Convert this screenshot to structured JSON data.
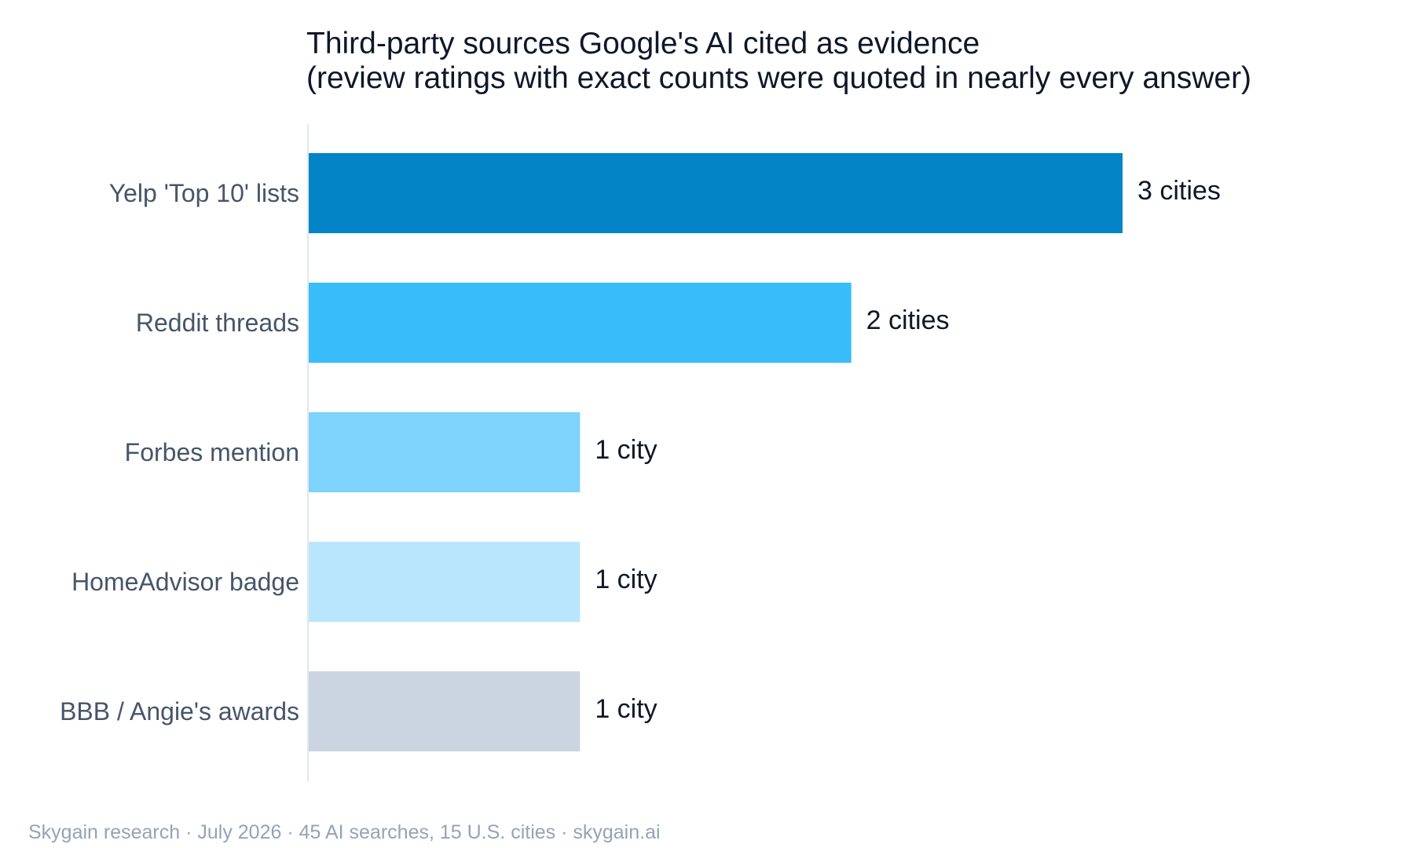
{
  "chart_data": {
    "type": "bar",
    "orientation": "horizontal",
    "title": [
      "Third-party sources Google's AI cited as evidence",
      "(review ratings with exact counts were quoted in nearly every answer)"
    ],
    "categories": [
      "Yelp 'Top 10' lists",
      "Reddit threads",
      "Forbes mention",
      "HomeAdvisor badge",
      "BBB / Angie's awards"
    ],
    "values": [
      3,
      2,
      1,
      1,
      1
    ],
    "value_labels": [
      "3 cities",
      "2 cities",
      "1 city",
      "1 city",
      "1 city"
    ],
    "colors": [
      "#0284c7",
      "#38bdf8",
      "#7dd3fc",
      "#bae6fd",
      "#cbd5e1"
    ],
    "xlim": [
      0,
      3
    ],
    "grid": false,
    "legend": "none"
  },
  "footer": "Skygain research · July 2026 · 45 AI searches, 15 U.S. cities · skygain.ai"
}
